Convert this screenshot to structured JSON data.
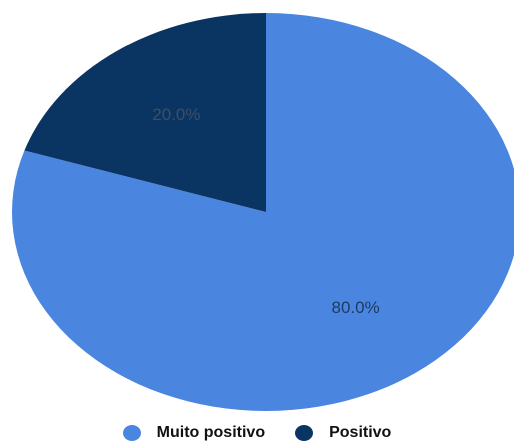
{
  "chart_data": {
    "type": "pie",
    "slices": [
      {
        "label": "Muito positivo",
        "value": 80.0,
        "display": "80.0%",
        "color": "#4a86e0",
        "label_color": "#1e3a66"
      },
      {
        "label": "Positivo",
        "value": 20.0,
        "display": "20.0%",
        "color": "#0a3461",
        "label_color": "#3d4f66"
      }
    ],
    "start_angle_deg": 0,
    "direction": "clockwise",
    "legend_position": "bottom"
  },
  "legend": {
    "items": [
      {
        "label": "Muito positivo",
        "color": "#4a86e0"
      },
      {
        "label": "Positivo",
        "color": "#0a3461"
      }
    ]
  }
}
